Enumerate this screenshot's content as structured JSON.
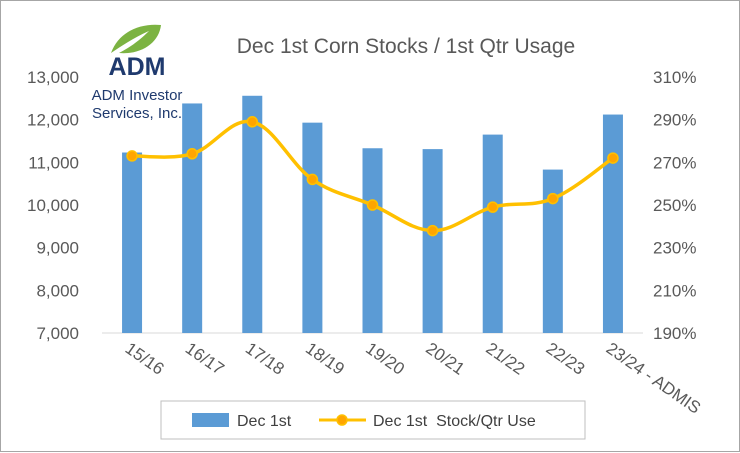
{
  "logo": {
    "brand": "ADM",
    "line1": "ADM Investor",
    "line2": "Services, Inc.",
    "brand_color": "#1f3a6e",
    "leaf_color": "#7cb342"
  },
  "chart_data": {
    "type": "bar+line",
    "title": "Dec 1st Corn Stocks / 1st Qtr Usage",
    "categories": [
      "15/16",
      "16/17",
      "17/18",
      "18/19",
      "19/20",
      "20/21",
      "21/22",
      "22/23",
      "23/24 - ADMIS"
    ],
    "series": [
      {
        "name": "Dec 1st",
        "type": "bar",
        "axis": "left",
        "color": "#5b9bd5",
        "values": [
          11230,
          12380,
          12560,
          11930,
          11330,
          11310,
          11650,
          10830,
          12120
        ]
      },
      {
        "name": "Dec 1st  Stock/Qtr Use",
        "type": "line",
        "axis": "right",
        "color": "#ffc000",
        "marker_fill": "#ffa500",
        "values": [
          273,
          274,
          289,
          262,
          250,
          238,
          249,
          253,
          272
        ]
      }
    ],
    "y_left": {
      "min": 7000,
      "max": 13000,
      "step": 1000,
      "tick_labels": [
        "7,000",
        "8,000",
        "9,000",
        "10,000",
        "11,000",
        "12,000",
        "13,000"
      ]
    },
    "y_right": {
      "min": 190,
      "max": 310,
      "step": 20,
      "tick_labels": [
        "190%",
        "210%",
        "230%",
        "250%",
        "270%",
        "290%",
        "310%"
      ]
    },
    "legend_position": "bottom",
    "grid": false
  }
}
